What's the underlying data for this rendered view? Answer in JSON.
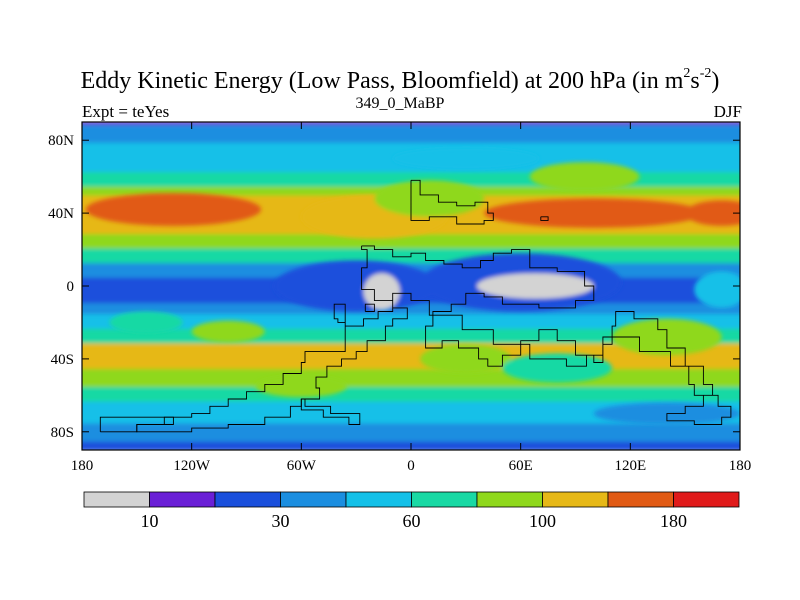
{
  "header": {
    "title_main": "Eddy Kinetic Energy (Low Pass, Bloomfield) at 200 hPa (in m",
    "title_sup1": "2",
    "title_mid": "s",
    "title_sup2": "-2",
    "title_end": ")",
    "left_label": "Expt = teYes",
    "center_label": "349_0_MaBP",
    "right_label": "DJF"
  },
  "chart_data": {
    "type": "heatmap",
    "title": "Eddy Kinetic Energy (Low Pass, Bloomfield) at 200 hPa (in m^2 s^-2)",
    "xlim": [
      -180,
      180
    ],
    "ylim": [
      -90,
      90
    ],
    "x_ticks": [
      {
        "value": -180,
        "label": "180"
      },
      {
        "value": -120,
        "label": "120W"
      },
      {
        "value": -60,
        "label": "60W"
      },
      {
        "value": 0,
        "label": "0"
      },
      {
        "value": 60,
        "label": "60E"
      },
      {
        "value": 120,
        "label": "120E"
      },
      {
        "value": 180,
        "label": "180"
      }
    ],
    "y_ticks": [
      {
        "value": 80,
        "label": "80N"
      },
      {
        "value": 40,
        "label": "40N"
      },
      {
        "value": 0,
        "label": "0"
      },
      {
        "value": -40,
        "label": "40S"
      },
      {
        "value": -80,
        "label": "80S"
      }
    ],
    "colorbar": {
      "colors": [
        "#d3d3d3",
        "#6a1fd6",
        "#1a4fdc",
        "#1b8ee0",
        "#14c0e8",
        "#19d9a4",
        "#8fd81c",
        "#e6b817",
        "#e15a14",
        "#e01a1a"
      ],
      "labels": [
        {
          "after_box": 1,
          "text": "10"
        },
        {
          "after_box": 3,
          "text": "30"
        },
        {
          "after_box": 5,
          "text": "60"
        },
        {
          "after_box": 7,
          "text": "100"
        },
        {
          "after_box": 9,
          "text": "180"
        }
      ]
    },
    "latitude_bands": [
      {
        "lat_top": 90,
        "lat_bottom": 88,
        "level": 1
      },
      {
        "lat_top": 88,
        "lat_bottom": 78,
        "level": 3
      },
      {
        "lat_top": 78,
        "lat_bottom": 62,
        "level": 4
      },
      {
        "lat_top": 62,
        "lat_bottom": 54,
        "level": 5
      },
      {
        "lat_top": 54,
        "lat_bottom": 49,
        "level": 6
      },
      {
        "lat_top": 49,
        "lat_bottom": 28,
        "level": 7
      },
      {
        "lat_top": 28,
        "lat_bottom": 20,
        "level": 6
      },
      {
        "lat_top": 20,
        "lat_bottom": 12,
        "level": 5
      },
      {
        "lat_top": 12,
        "lat_bottom": 4,
        "level": 3
      },
      {
        "lat_top": 4,
        "lat_bottom": -10,
        "level": 2
      },
      {
        "lat_top": -10,
        "lat_bottom": -16,
        "level": 3
      },
      {
        "lat_top": -16,
        "lat_bottom": -24,
        "level": 4
      },
      {
        "lat_top": -24,
        "lat_bottom": -32,
        "level": 5
      },
      {
        "lat_top": -32,
        "lat_bottom": -46,
        "level": 7
      },
      {
        "lat_top": -46,
        "lat_bottom": -56,
        "level": 6
      },
      {
        "lat_top": -56,
        "lat_bottom": -64,
        "level": 5
      },
      {
        "lat_top": -64,
        "lat_bottom": -76,
        "level": 4
      },
      {
        "lat_top": -76,
        "lat_bottom": -86,
        "level": 3
      },
      {
        "lat_top": -86,
        "lat_bottom": -90,
        "level": 2
      }
    ],
    "features": [
      {
        "lon": -130,
        "lat": 42,
        "rlon": 48,
        "rlat": 9,
        "level": 8
      },
      {
        "lon": 100,
        "lat": 40,
        "rlon": 60,
        "rlat": 8,
        "level": 8
      },
      {
        "lon": 170,
        "lat": 40,
        "rlon": 20,
        "rlat": 7,
        "level": 8
      },
      {
        "lon": -20,
        "lat": 38,
        "rlon": 40,
        "rlat": 12,
        "level": 7
      },
      {
        "lon": 10,
        "lat": 48,
        "rlon": 30,
        "rlat": 10,
        "level": 6
      },
      {
        "lon": 95,
        "lat": 60,
        "rlon": 30,
        "rlat": 8,
        "level": 6
      },
      {
        "lon": 30,
        "lat": 70,
        "rlon": 40,
        "rlat": 6,
        "level": 4
      },
      {
        "lon": -30,
        "lat": 0,
        "rlon": 45,
        "rlat": 14,
        "level": 2
      },
      {
        "lon": 60,
        "lat": 2,
        "rlon": 55,
        "rlat": 16,
        "level": 2
      },
      {
        "lon": -16,
        "lat": -3,
        "rlon": 10,
        "rlat": 10,
        "level": 0
      },
      {
        "lon": 68,
        "lat": 0,
        "rlon": 32,
        "rlat": 7,
        "level": 0
      },
      {
        "lon": 170,
        "lat": -2,
        "rlon": 15,
        "rlat": 10,
        "level": 4
      },
      {
        "lon": -145,
        "lat": -20,
        "rlon": 20,
        "rlat": 6,
        "level": 5
      },
      {
        "lon": -100,
        "lat": -25,
        "rlon": 20,
        "rlat": 6,
        "level": 6
      },
      {
        "lon": 30,
        "lat": -40,
        "rlon": 25,
        "rlat": 8,
        "level": 6
      },
      {
        "lon": 140,
        "lat": -28,
        "rlon": 30,
        "rlat": 10,
        "level": 6
      },
      {
        "lon": 80,
        "lat": -45,
        "rlon": 30,
        "rlat": 8,
        "level": 5
      },
      {
        "lon": -60,
        "lat": -55,
        "rlon": 25,
        "rlat": 6,
        "level": 6
      },
      {
        "lon": 140,
        "lat": -70,
        "rlon": 40,
        "rlat": 6,
        "level": 3
      }
    ],
    "outline_paths": [
      [
        [
          0,
          58
        ],
        [
          5,
          58
        ],
        [
          5,
          50
        ],
        [
          15,
          50
        ],
        [
          15,
          46
        ],
        [
          25,
          46
        ],
        [
          25,
          44
        ],
        [
          35,
          44
        ],
        [
          35,
          46
        ],
        [
          42,
          46
        ],
        [
          42,
          40
        ],
        [
          45,
          40
        ],
        [
          45,
          36
        ],
        [
          40,
          36
        ],
        [
          40,
          34
        ],
        [
          25,
          34
        ],
        [
          25,
          38
        ],
        [
          10,
          38
        ],
        [
          10,
          36
        ],
        [
          5,
          36
        ],
        [
          0,
          36
        ],
        [
          0,
          58
        ]
      ],
      [
        [
          -27,
          22
        ],
        [
          -20,
          22
        ],
        [
          -20,
          20
        ],
        [
          -10,
          20
        ],
        [
          -10,
          16
        ],
        [
          0,
          16
        ],
        [
          0,
          18
        ],
        [
          8,
          18
        ],
        [
          8,
          14
        ],
        [
          18,
          14
        ],
        [
          18,
          12
        ],
        [
          28,
          12
        ],
        [
          28,
          10
        ],
        [
          38,
          10
        ],
        [
          38,
          14
        ],
        [
          45,
          14
        ],
        [
          45,
          18
        ],
        [
          55,
          18
        ],
        [
          55,
          20
        ],
        [
          65,
          20
        ],
        [
          65,
          10
        ],
        [
          80,
          10
        ],
        [
          80,
          8
        ],
        [
          95,
          8
        ],
        [
          95,
          0
        ],
        [
          100,
          0
        ],
        [
          100,
          -8
        ],
        [
          90,
          -8
        ],
        [
          90,
          -12
        ],
        [
          70,
          -12
        ],
        [
          70,
          -10
        ],
        [
          50,
          -10
        ],
        [
          50,
          -6
        ],
        [
          40,
          -6
        ],
        [
          40,
          -4
        ],
        [
          30,
          -4
        ],
        [
          30,
          -10
        ],
        [
          22,
          -10
        ],
        [
          22,
          -14
        ],
        [
          12,
          -14
        ],
        [
          12,
          -22
        ],
        [
          8,
          -22
        ],
        [
          8,
          -34
        ],
        [
          17,
          -34
        ],
        [
          17,
          -30
        ],
        [
          26,
          -30
        ],
        [
          26,
          -34
        ],
        [
          37,
          -34
        ],
        [
          37,
          -40
        ],
        [
          42,
          -40
        ],
        [
          42,
          -44
        ],
        [
          50,
          -44
        ],
        [
          50,
          -38
        ],
        [
          60,
          -38
        ],
        [
          60,
          -30
        ],
        [
          70,
          -30
        ],
        [
          70,
          -24
        ],
        [
          80,
          -24
        ],
        [
          80,
          -30
        ],
        [
          90,
          -30
        ],
        [
          90,
          -38
        ],
        [
          100,
          -38
        ],
        [
          100,
          -42
        ],
        [
          105,
          -42
        ],
        [
          105,
          -32
        ],
        [
          110,
          -32
        ],
        [
          110,
          -22
        ],
        [
          112,
          -22
        ],
        [
          112,
          -14
        ],
        [
          122,
          -14
        ],
        [
          122,
          -18
        ],
        [
          135,
          -18
        ],
        [
          135,
          -24
        ],
        [
          140,
          -24
        ],
        [
          140,
          -34
        ],
        [
          150,
          -34
        ],
        [
          150,
          -44
        ],
        [
          160,
          -44
        ],
        [
          160,
          -54
        ],
        [
          165,
          -54
        ],
        [
          165,
          -60
        ],
        [
          160,
          -60
        ],
        [
          160,
          -66
        ],
        [
          150,
          -66
        ],
        [
          150,
          -70
        ],
        [
          140,
          -70
        ],
        [
          140,
          -74
        ],
        [
          155,
          -74
        ],
        [
          155,
          -76
        ],
        [
          170,
          -76
        ],
        [
          170,
          -72
        ],
        [
          175,
          -72
        ],
        [
          175,
          -66
        ],
        [
          168,
          -66
        ],
        [
          168,
          -60
        ],
        [
          155,
          -60
        ],
        [
          155,
          -54
        ],
        [
          152,
          -54
        ],
        [
          152,
          -44
        ],
        [
          142,
          -44
        ],
        [
          142,
          -36
        ],
        [
          125,
          -36
        ],
        [
          125,
          -28
        ],
        [
          105,
          -28
        ],
        [
          105,
          -38
        ],
        [
          96,
          -38
        ],
        [
          96,
          -44
        ],
        [
          85,
          -44
        ],
        [
          85,
          -40
        ],
        [
          65,
          -40
        ],
        [
          65,
          -32
        ],
        [
          45,
          -32
        ],
        [
          45,
          -24
        ],
        [
          28,
          -24
        ],
        [
          28,
          -16
        ],
        [
          10,
          -16
        ],
        [
          10,
          -8
        ],
        [
          0,
          -8
        ],
        [
          0,
          -4
        ],
        [
          -10,
          -4
        ],
        [
          -10,
          -14
        ],
        [
          -18,
          -14
        ],
        [
          -18,
          -18
        ],
        [
          -26,
          -18
        ],
        [
          -26,
          -22
        ],
        [
          -36,
          -22
        ],
        [
          -36,
          -10
        ],
        [
          -42,
          -10
        ],
        [
          -42,
          -18
        ],
        [
          -40,
          -18
        ],
        [
          -40,
          -20
        ],
        [
          -36,
          -20
        ],
        [
          -36,
          -36
        ],
        [
          -58,
          -36
        ],
        [
          -58,
          -42
        ],
        [
          -60,
          -42
        ],
        [
          -60,
          -48
        ],
        [
          -70,
          -48
        ],
        [
          -70,
          -54
        ],
        [
          -80,
          -54
        ],
        [
          -80,
          -58
        ],
        [
          -90,
          -58
        ],
        [
          -90,
          -62
        ],
        [
          -100,
          -62
        ],
        [
          -100,
          -66
        ],
        [
          -110,
          -66
        ],
        [
          -110,
          -70
        ],
        [
          -120,
          -70
        ],
        [
          -120,
          -72
        ],
        [
          -135,
          -72
        ],
        [
          -135,
          -76
        ],
        [
          -150,
          -76
        ],
        [
          -150,
          -80
        ],
        [
          -120,
          -80
        ],
        [
          -120,
          -78
        ],
        [
          -100,
          -78
        ],
        [
          -100,
          -76
        ],
        [
          -80,
          -76
        ],
        [
          -80,
          -72
        ],
        [
          -66,
          -72
        ],
        [
          -66,
          -66
        ],
        [
          -60,
          -66
        ],
        [
          -60,
          -62
        ],
        [
          -50,
          -62
        ],
        [
          -50,
          -56
        ],
        [
          -52,
          -56
        ],
        [
          -52,
          -50
        ],
        [
          -46,
          -50
        ],
        [
          -46,
          -44
        ],
        [
          -38,
          -44
        ],
        [
          -38,
          -40
        ],
        [
          -30,
          -40
        ],
        [
          -30,
          -36
        ],
        [
          -24,
          -36
        ],
        [
          -24,
          -30
        ],
        [
          -14,
          -30
        ],
        [
          -14,
          -22
        ],
        [
          -10,
          -22
        ],
        [
          -10,
          -18
        ],
        [
          -2,
          -18
        ],
        [
          -2,
          -12
        ],
        [
          -10,
          -12
        ],
        [
          -10,
          -8
        ],
        [
          -20,
          -8
        ],
        [
          -20,
          -2
        ],
        [
          -27,
          -2
        ],
        [
          -27,
          10
        ],
        [
          -24,
          10
        ],
        [
          -24,
          20
        ],
        [
          -27,
          20
        ],
        [
          -27,
          22
        ]
      ],
      [
        [
          -60,
          -62
        ],
        [
          -58,
          -62
        ],
        [
          -58,
          -66
        ],
        [
          -44,
          -66
        ],
        [
          -44,
          -70
        ],
        [
          -28,
          -70
        ],
        [
          -28,
          -76
        ],
        [
          -34,
          -76
        ],
        [
          -34,
          -72
        ],
        [
          -48,
          -72
        ],
        [
          -48,
          -68
        ],
        [
          -60,
          -68
        ],
        [
          -60,
          -62
        ]
      ],
      [
        [
          -170,
          -80
        ],
        [
          -150,
          -80
        ],
        [
          -150,
          -76
        ],
        [
          -130,
          -76
        ],
        [
          -130,
          -72
        ],
        [
          -170,
          -72
        ],
        [
          -170,
          -80
        ]
      ],
      [
        [
          -25,
          -14
        ],
        [
          -20,
          -14
        ],
        [
          -20,
          -10
        ],
        [
          -25,
          -10
        ],
        [
          -25,
          -14
        ]
      ],
      [
        [
          71,
          38
        ],
        [
          75,
          38
        ],
        [
          75,
          36
        ],
        [
          71,
          36
        ],
        [
          71,
          38
        ]
      ]
    ]
  }
}
